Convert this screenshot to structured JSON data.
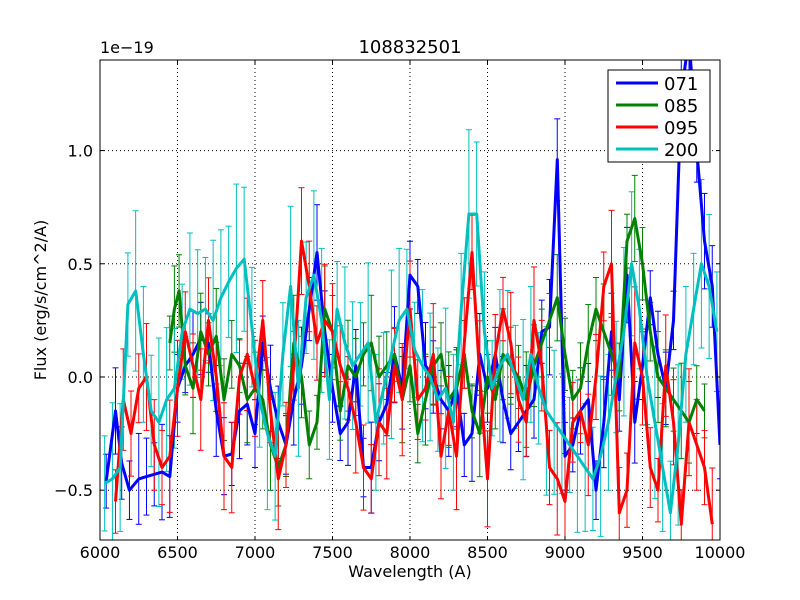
{
  "chart_data": {
    "type": "line",
    "title": "108832501",
    "xlabel": "Wavelength (A)",
    "ylabel": "Flux (erg/s/cm^2/A)",
    "offset_label": "1e−19",
    "xlim": [
      6000,
      10000
    ],
    "ylim": [
      -0.72,
      1.4
    ],
    "xticks": [
      6000,
      6500,
      7000,
      7500,
      8000,
      8500,
      9000,
      9500,
      10000
    ],
    "xtick_labels": [
      "6000",
      "6500",
      "7000",
      "7500",
      "8000",
      "8500",
      "9000",
      "9500",
      "10000"
    ],
    "yticks": [
      -0.5,
      0.0,
      0.5,
      1.0
    ],
    "ytick_labels": [
      "−0.5",
      "0.0",
      "0.5",
      "1.0"
    ],
    "grid": true,
    "legend_position": "top-right",
    "colors": {
      "071": "#0000ff",
      "085": "#008000",
      "095": "#ff0000",
      "200": "#00bfbf"
    },
    "series": [
      {
        "name": "071",
        "color": "#0000ff",
        "err": 0.17,
        "x": [
          6040,
          6100,
          6140,
          6190,
          6250,
          6300,
          6350,
          6400,
          6450,
          6500,
          6550,
          6600,
          6650,
          6700,
          6750,
          6800,
          6850,
          6900,
          6950,
          7000,
          7050,
          7100,
          7150,
          7200,
          7250,
          7300,
          7350,
          7400,
          7450,
          7500,
          7550,
          7600,
          7650,
          7700,
          7750,
          7800,
          7850,
          7900,
          7950,
          8000,
          8050,
          8100,
          8150,
          8200,
          8250,
          8300,
          8350,
          8400,
          8450,
          8500,
          8550,
          8600,
          8650,
          8700,
          8750,
          8800,
          8850,
          8900,
          8950,
          9000,
          9050,
          9100,
          9150,
          9200,
          9250,
          9300,
          9350,
          9400,
          9450,
          9500,
          9550,
          9600,
          9650,
          9700,
          9750,
          9800,
          9850,
          9900,
          9950,
          10000
        ],
        "y": [
          -0.46,
          -0.15,
          -0.38,
          -0.5,
          -0.45,
          -0.44,
          -0.43,
          -0.42,
          -0.44,
          -0.05,
          0.05,
          0.1,
          0.17,
          0.15,
          -0.15,
          -0.35,
          -0.34,
          -0.15,
          -0.12,
          -0.25,
          0.15,
          -0.05,
          -0.2,
          -0.3,
          -0.1,
          0.05,
          0.3,
          0.55,
          0.2,
          -0.05,
          -0.25,
          -0.2,
          0.05,
          -0.4,
          -0.4,
          -0.2,
          -0.12,
          0.1,
          -0.05,
          0.45,
          0.4,
          0.05,
          0.0,
          -0.1,
          -0.15,
          -0.05,
          -0.3,
          -0.25,
          0.1,
          -0.05,
          0.1,
          -0.1,
          -0.25,
          -0.2,
          -0.15,
          -0.1,
          0.2,
          0.22,
          0.96,
          -0.35,
          -0.3,
          -0.15,
          -0.1,
          -0.5,
          -0.2,
          0.2,
          -0.1,
          0.45,
          -0.2,
          0.05,
          0.35,
          0.1,
          -0.05,
          0.25,
          1.25,
          1.5,
          1.0,
          0.6,
          0.4,
          -0.3
        ]
      },
      {
        "name": "085",
        "color": "#008000",
        "err": 0.17,
        "x": [
          6450,
          6480,
          6510,
          6550,
          6600,
          6650,
          6700,
          6750,
          6800,
          6850,
          6900,
          6950,
          7000,
          7050,
          7100,
          7150,
          7200,
          7250,
          7300,
          7350,
          7400,
          7450,
          7500,
          7550,
          7600,
          7650,
          7700,
          7750,
          7800,
          7850,
          7900,
          7950,
          8000,
          8050,
          8100,
          8150,
          8200,
          8250,
          8300,
          8350,
          8400,
          8450,
          8500,
          8550,
          8600,
          8650,
          8700,
          8750,
          8800,
          8850,
          8900,
          8950,
          9000,
          9050,
          9100,
          9150,
          9200,
          9250,
          9300,
          9350,
          9400,
          9450,
          9500,
          9550,
          9600,
          9650,
          9700,
          9750,
          9800,
          9850,
          9900
        ],
        "y": [
          0.15,
          0.3,
          0.38,
          0.05,
          -0.05,
          0.2,
          0.1,
          0.18,
          -0.1,
          0.1,
          0.05,
          -0.1,
          -0.05,
          -0.1,
          -0.3,
          -0.4,
          -0.3,
          0.15,
          0.0,
          -0.3,
          -0.2,
          0.3,
          0.2,
          -0.15,
          0.05,
          0.0,
          0.1,
          0.15,
          0.0,
          0.05,
          0.1,
          -0.1,
          0.05,
          -0.25,
          -0.1,
          0.05,
          0.1,
          -0.1,
          -0.05,
          0.1,
          -0.15,
          -0.25,
          0.0,
          -0.1,
          0.1,
          0.05,
          0.0,
          -0.1,
          0.05,
          0.15,
          0.25,
          0.35,
          0.1,
          -0.1,
          -0.05,
          0.15,
          0.3,
          0.2,
          0.1,
          0.0,
          0.6,
          0.7,
          0.5,
          0.2,
          0.0,
          -0.05,
          -0.1,
          -0.15,
          -0.2,
          -0.1,
          -0.15
        ]
      },
      {
        "name": "095",
        "color": "#ff0000",
        "err": 0.2,
        "x": [
          6100,
          6150,
          6200,
          6250,
          6300,
          6350,
          6400,
          6450,
          6500,
          6550,
          6600,
          6650,
          6700,
          6750,
          6800,
          6850,
          6900,
          6950,
          7000,
          7050,
          7100,
          7150,
          7200,
          7250,
          7300,
          7350,
          7400,
          7450,
          7500,
          7550,
          7600,
          7650,
          7700,
          7750,
          7800,
          7850,
          7900,
          7950,
          8000,
          8050,
          8100,
          8150,
          8200,
          8250,
          8300,
          8350,
          8400,
          8450,
          8500,
          8550,
          8600,
          8650,
          8700,
          8750,
          8800,
          8850,
          8900,
          8950,
          9000,
          9050,
          9100,
          9150,
          9200,
          9250,
          9300,
          9350,
          9400,
          9450,
          9500,
          9550,
          9600,
          9650,
          9700,
          9750,
          9800,
          9850,
          9900,
          9950
        ],
        "y": [
          -0.55,
          -0.1,
          -0.25,
          -0.05,
          0.0,
          -0.3,
          -0.4,
          -0.35,
          -0.05,
          0.2,
          0.05,
          -0.1,
          0.25,
          0.0,
          -0.35,
          -0.4,
          0.0,
          0.1,
          -0.05,
          0.25,
          -0.15,
          -0.45,
          -0.3,
          0.05,
          0.6,
          0.4,
          0.15,
          0.25,
          0.2,
          0.05,
          -0.05,
          -0.2,
          -0.4,
          -0.45,
          -0.2,
          -0.25,
          0.05,
          -0.1,
          0.3,
          -0.1,
          -0.05,
          0.1,
          -0.35,
          -0.15,
          -0.35,
          0.15,
          0.55,
          0.0,
          -0.45,
          0.1,
          0.3,
          0.15,
          -0.1,
          -0.2,
          0.25,
          0.05,
          -0.4,
          -0.45,
          -0.55,
          -0.2,
          -0.15,
          -0.3,
          0.0,
          0.4,
          0.5,
          -0.6,
          -0.5,
          0.15,
          0.0,
          -0.4,
          -0.5,
          0.05,
          -0.2,
          -0.65,
          -0.2,
          -0.3,
          -0.4,
          -0.65
        ]
      },
      {
        "name": "200",
        "color": "#00bfbf",
        "err": 0.3,
        "x": [
          6030,
          6080,
          6130,
          6180,
          6230,
          6280,
          6330,
          6380,
          6430,
          6480,
          6530,
          6580,
          6630,
          6680,
          6730,
          6780,
          6830,
          6880,
          6930,
          6980,
          7030,
          7080,
          7130,
          7180,
          7230,
          7280,
          7330,
          7380,
          7430,
          7480,
          7530,
          7580,
          7630,
          7680,
          7730,
          7780,
          7830,
          7880,
          7930,
          7980,
          8030,
          8080,
          8130,
          8180,
          8230,
          8280,
          8330,
          8380,
          8430,
          8480,
          8530,
          8580,
          8630,
          8680,
          8730,
          8780,
          8830,
          8880,
          8930,
          8980,
          9030,
          9080,
          9130,
          9180,
          9230,
          9280,
          9330,
          9380,
          9430,
          9480,
          9530,
          9580,
          9630,
          9680,
          9730,
          9780,
          9830,
          9880,
          9930,
          9980
        ],
        "y": [
          -0.47,
          -0.45,
          -0.4,
          0.32,
          0.38,
          0.1,
          -0.15,
          -0.2,
          -0.1,
          -0.05,
          0.2,
          0.3,
          0.28,
          0.3,
          0.25,
          0.35,
          0.42,
          0.48,
          0.52,
          0.22,
          -0.1,
          -0.25,
          -0.35,
          0.1,
          0.4,
          -0.05,
          0.35,
          0.45,
          0.25,
          -0.1,
          0.3,
          0.15,
          0.05,
          0.1,
          0.15,
          -0.2,
          -0.05,
          0.1,
          0.25,
          0.3,
          0.12,
          0.05,
          0.0,
          -0.1,
          -0.05,
          -0.2,
          0.3,
          0.72,
          0.72,
          0.2,
          -0.05,
          0.05,
          0.1,
          0.0,
          -0.1,
          0.1,
          -0.05,
          -0.15,
          -0.2,
          -0.25,
          -0.3,
          -0.35,
          -0.4,
          -0.45,
          -0.35,
          -0.2,
          0.0,
          0.2,
          0.5,
          0.3,
          0.0,
          -0.2,
          -0.4,
          -0.6,
          -0.3,
          0.1,
          0.3,
          0.5,
          0.4,
          0.2
        ]
      }
    ]
  }
}
